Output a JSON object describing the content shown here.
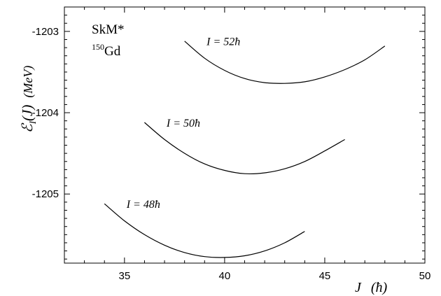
{
  "chart_data": {
    "type": "line",
    "xlabel": {
      "var": "J",
      "unit": "(ħ)"
    },
    "ylabel": {
      "var": "ℰ",
      "sub": "I",
      "arg": "(J)",
      "unit": "(MeV)"
    },
    "xlim": [
      32,
      50
    ],
    "ylim": [
      -1205.85,
      -1202.7
    ],
    "x_ticks": [
      35,
      40,
      45,
      50
    ],
    "y_ticks": [
      -1203,
      -1204,
      -1205
    ],
    "x_tick_labels": [
      "35",
      "40",
      "45",
      "50"
    ],
    "y_tick_labels": [
      "-1203",
      "-1204",
      "-1205"
    ],
    "grid": false,
    "annotations": {
      "model": "SkM*",
      "nucleus_mass": "150",
      "nucleus": "Gd"
    },
    "series": [
      {
        "label": "I = 48ħ",
        "x": [
          34,
          35,
          36,
          37,
          38,
          39,
          40,
          41,
          42,
          43,
          44
        ],
        "y": [
          -1205.12,
          -1205.33,
          -1205.5,
          -1205.63,
          -1205.72,
          -1205.77,
          -1205.78,
          -1205.76,
          -1205.7,
          -1205.6,
          -1205.46
        ]
      },
      {
        "label": "I = 50ħ",
        "x": [
          36,
          37,
          38,
          39,
          40,
          41,
          42,
          43,
          44,
          45,
          46
        ],
        "y": [
          -1204.12,
          -1204.33,
          -1204.5,
          -1204.63,
          -1204.71,
          -1204.75,
          -1204.74,
          -1204.69,
          -1204.6,
          -1204.47,
          -1204.33
        ]
      },
      {
        "label": "I = 52ħ",
        "x": [
          38,
          39,
          40,
          41,
          42,
          43,
          44,
          45,
          46,
          47,
          48
        ],
        "y": [
          -1203.12,
          -1203.33,
          -1203.48,
          -1203.58,
          -1203.63,
          -1203.64,
          -1203.62,
          -1203.56,
          -1203.47,
          -1203.35,
          -1203.18
        ]
      }
    ]
  }
}
